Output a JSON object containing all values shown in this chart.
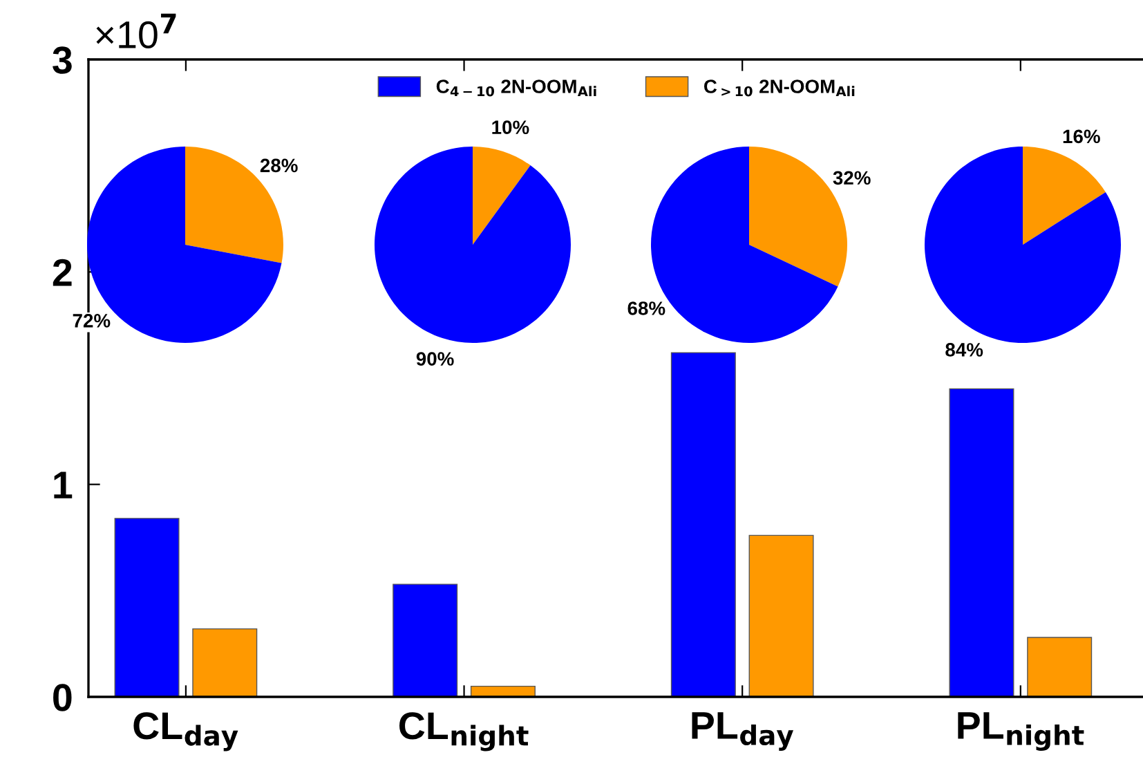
{
  "chart_data": [
    {
      "type": "bar",
      "categories": [
        "CL$_{day}$",
        "CL$_{night}$",
        "PL$_{day}$",
        "PL$_{night}$"
      ],
      "series": [
        {
          "name": "C$_{4−10}$ 2N-OOM$_{Ali}$",
          "color": "#0000ff",
          "values": [
            0.84,
            0.53,
            1.62,
            1.45
          ]
        },
        {
          "name": "C$_{>10}$ 2N-OOM$_{Ali}$",
          "color": "#ff9900",
          "values": [
            0.32,
            0.05,
            0.76,
            0.28
          ]
        }
      ],
      "ylim": [
        0,
        3
      ],
      "yticks": [
        0,
        1,
        2,
        3
      ],
      "annotations": [
        "×10$^{7}$"
      ],
      "legend": "top",
      "grid": false
    },
    {
      "type": "pie",
      "categories": [
        null,
        null
      ],
      "values": [
        28,
        72
      ],
      "colors": [
        "#ff9900",
        "#0000ff"
      ],
      "value_labels": [
        "28%",
        "72%"
      ]
    },
    {
      "type": "pie",
      "categories": [
        null,
        null
      ],
      "values": [
        10,
        90
      ],
      "colors": [
        "#ff9900",
        "#0000ff"
      ],
      "value_labels": [
        "10%",
        "90%"
      ]
    },
    {
      "type": "pie",
      "categories": [
        null,
        null
      ],
      "values": [
        32,
        68
      ],
      "colors": [
        "#ff9900",
        "#0000ff"
      ],
      "value_labels": [
        "32%",
        "68%"
      ]
    },
    {
      "type": "pie",
      "categories": [
        null,
        null
      ],
      "values": [
        16,
        84
      ],
      "colors": [
        "#ff9900",
        "#0000ff"
      ],
      "value_labels": [
        "16%",
        "84%"
      ]
    }
  ]
}
